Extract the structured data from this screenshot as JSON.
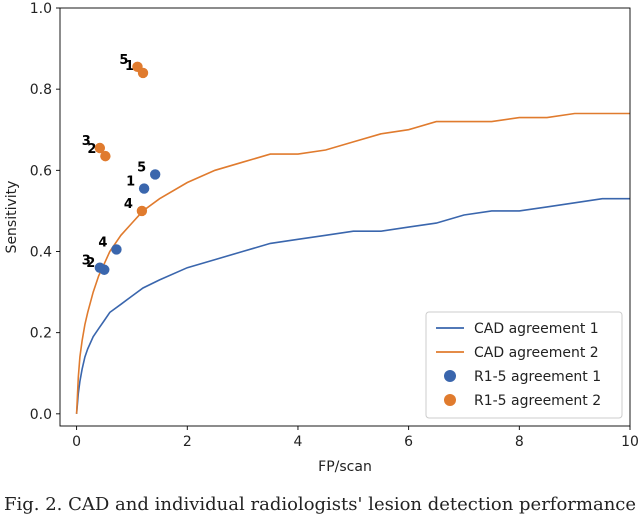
{
  "chart_data": {
    "type": "line",
    "title": "",
    "xlabel": "FP/scan",
    "ylabel": "Sensitivity",
    "xlim": [
      -0.3,
      10
    ],
    "ylim": [
      -0.03,
      1.0
    ],
    "xticks": [
      0,
      2,
      4,
      6,
      8,
      10
    ],
    "yticks": [
      0.0,
      0.2,
      0.4,
      0.6,
      0.8,
      1.0
    ],
    "xtick_labels": [
      "0",
      "2",
      "4",
      "6",
      "8",
      "10"
    ],
    "ytick_labels": [
      "0.0",
      "0.2",
      "0.4",
      "0.6",
      "0.8",
      "1.0"
    ],
    "legend_position": "bottom-right",
    "series": [
      {
        "name": "CAD agreement 1",
        "kind": "line",
        "color": "#3a66ad",
        "x": [
          0.0,
          0.03,
          0.06,
          0.1,
          0.15,
          0.2,
          0.3,
          0.4,
          0.5,
          0.6,
          0.8,
          1.0,
          1.2,
          1.5,
          2.0,
          2.5,
          3.0,
          3.5,
          4.0,
          4.5,
          5.0,
          5.5,
          6.0,
          6.5,
          7.0,
          7.5,
          8.0,
          8.5,
          9.0,
          9.5,
          10.0
        ],
        "y": [
          0.0,
          0.05,
          0.08,
          0.11,
          0.14,
          0.16,
          0.19,
          0.21,
          0.23,
          0.25,
          0.27,
          0.29,
          0.31,
          0.33,
          0.36,
          0.38,
          0.4,
          0.42,
          0.43,
          0.44,
          0.45,
          0.45,
          0.46,
          0.47,
          0.49,
          0.5,
          0.5,
          0.51,
          0.52,
          0.53,
          0.53
        ]
      },
      {
        "name": "CAD agreement 2",
        "kind": "line",
        "color": "#e07b2e",
        "x": [
          0.0,
          0.03,
          0.06,
          0.1,
          0.15,
          0.2,
          0.3,
          0.4,
          0.5,
          0.6,
          0.8,
          1.0,
          1.2,
          1.5,
          2.0,
          2.5,
          3.0,
          3.5,
          4.0,
          4.5,
          5.0,
          5.5,
          6.0,
          6.5,
          7.0,
          7.5,
          8.0,
          8.5,
          9.0,
          9.5,
          10.0
        ],
        "y": [
          0.0,
          0.09,
          0.14,
          0.18,
          0.22,
          0.25,
          0.3,
          0.34,
          0.37,
          0.4,
          0.44,
          0.47,
          0.5,
          0.53,
          0.57,
          0.6,
          0.62,
          0.64,
          0.64,
          0.65,
          0.67,
          0.69,
          0.7,
          0.72,
          0.72,
          0.72,
          0.73,
          0.73,
          0.74,
          0.74,
          0.74
        ]
      },
      {
        "name": "R1-5 agreement 1",
        "kind": "scatter",
        "color": "#3a66ad",
        "points": [
          {
            "x": 1.22,
            "y": 0.555,
            "label": "1"
          },
          {
            "x": 0.5,
            "y": 0.355,
            "label": "2"
          },
          {
            "x": 0.42,
            "y": 0.36,
            "label": "3"
          },
          {
            "x": 0.72,
            "y": 0.405,
            "label": "4"
          },
          {
            "x": 1.42,
            "y": 0.59,
            "label": "5"
          }
        ]
      },
      {
        "name": "R1-5 agreement 2",
        "kind": "scatter",
        "color": "#e07b2e",
        "points": [
          {
            "x": 1.2,
            "y": 0.84,
            "label": "1"
          },
          {
            "x": 0.52,
            "y": 0.635,
            "label": "2"
          },
          {
            "x": 0.42,
            "y": 0.655,
            "label": "3"
          },
          {
            "x": 1.18,
            "y": 0.5,
            "label": "4"
          },
          {
            "x": 1.1,
            "y": 0.855,
            "label": "5"
          }
        ]
      }
    ]
  },
  "caption": "Fig. 2. CAD and individual radiologists' lesion detection performance"
}
